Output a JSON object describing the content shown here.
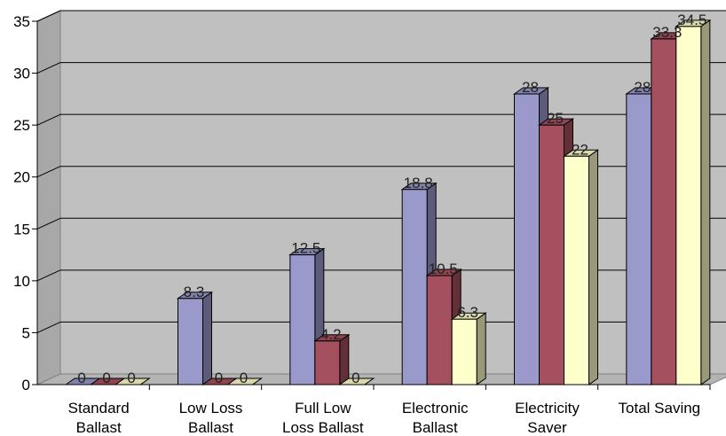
{
  "chart_data": {
    "type": "bar",
    "title": "",
    "xlabel": "",
    "ylabel": "",
    "ylim": [
      0,
      35
    ],
    "yticks": [
      0,
      5,
      10,
      15,
      20,
      25,
      30,
      35
    ],
    "grid": true,
    "legend": "none",
    "three_d": true,
    "categories": [
      [
        "Standard",
        "Ballast"
      ],
      [
        "Low Loss",
        "Ballast"
      ],
      [
        "Full Low",
        "Loss Ballast"
      ],
      [
        "Electronic",
        "Ballast"
      ],
      [
        "Electricity",
        "Saver"
      ],
      [
        "Total Saving"
      ]
    ],
    "series": [
      {
        "values": [
          0,
          8.3,
          12.5,
          18.8,
          28,
          28
        ],
        "labels": [
          "0",
          "8.3",
          "12.5",
          "18.8",
          "28",
          "28"
        ],
        "color": "#9999cc"
      },
      {
        "values": [
          0,
          0,
          4.2,
          10.5,
          25,
          33.3
        ],
        "labels": [
          "0",
          "0",
          "4.2",
          "10.5",
          "25",
          "33.3"
        ],
        "color": "#a5505e"
      },
      {
        "values": [
          0,
          0,
          0,
          6.3,
          22,
          34.5
        ],
        "labels": [
          "0",
          "0",
          "0",
          "6.3",
          "22",
          "34.5"
        ],
        "color": "#ffffcc"
      }
    ],
    "colors": {
      "wall": "#c0c0c0",
      "gridline": "#000000"
    }
  }
}
